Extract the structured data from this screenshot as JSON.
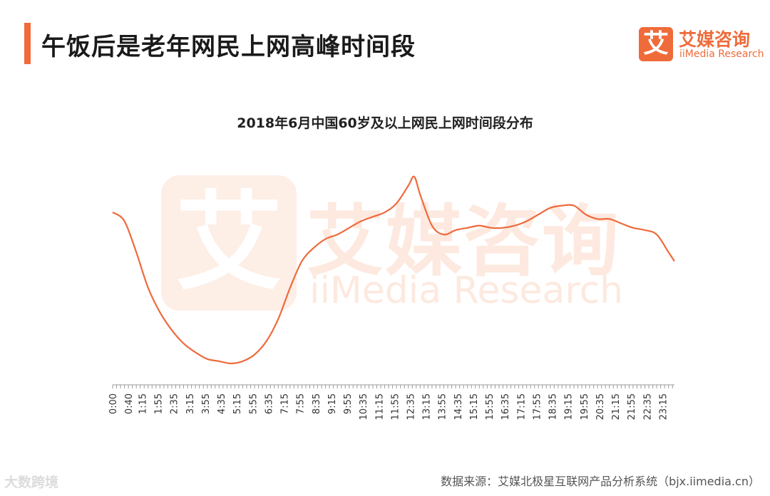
{
  "header": {
    "title": "午饭后是老年网民上网高峰时间段",
    "logo_mark": "艾",
    "logo_cn": "艾媒咨询",
    "logo_en": "iiMedia Research"
  },
  "watermark": {
    "mark": "艾",
    "cn": "艾媒咨询",
    "en": "iiMedia Research"
  },
  "footer": {
    "source": "数据来源：艾媒北极星互联网产品分析系统（bjx.iimedia.cn）",
    "brand": "大数跨境"
  },
  "colors": {
    "accent": "#ef6b3a",
    "line": "#ee6a3c",
    "axis": "#9a9a9a"
  },
  "chart_data": {
    "type": "line",
    "title": "2018年6月中国60岁及以上网民上网时间段分布",
    "xlabel": "",
    "ylabel": "",
    "grid": false,
    "legend": "none",
    "tick_labels": [
      "0:00",
      "0:40",
      "1:15",
      "1:55",
      "2:35",
      "3:15",
      "3:55",
      "4:35",
      "5:15",
      "5:55",
      "6:35",
      "7:15",
      "7:55",
      "8:35",
      "9:15",
      "9:55",
      "10:35",
      "11:15",
      "11:55",
      "12:35",
      "13:15",
      "13:55",
      "14:35",
      "15:15",
      "15:55",
      "16:35",
      "17:15",
      "17:55",
      "18:35",
      "19:15",
      "19:55",
      "20:35",
      "21:15",
      "21:55",
      "22:35",
      "23:15"
    ],
    "series": [
      {
        "x": [
          "0:00",
          "0:30",
          "1:00",
          "1:30",
          "2:00",
          "2:30",
          "3:00",
          "3:30",
          "4:00",
          "4:30",
          "5:00",
          "5:30",
          "6:00",
          "6:30",
          "7:00",
          "7:30",
          "8:00",
          "8:30",
          "9:00",
          "9:30",
          "10:00",
          "10:30",
          "11:00",
          "11:30",
          "12:00",
          "12:30",
          "12:45",
          "13:00",
          "13:30",
          "14:00",
          "14:30",
          "15:00",
          "15:30",
          "16:00",
          "16:30",
          "17:00",
          "17:30",
          "18:00",
          "18:30",
          "19:00",
          "19:30",
          "20:00",
          "20:30",
          "21:00",
          "21:30",
          "22:00",
          "22:30",
          "23:00",
          "23:30",
          "23:45"
        ],
        "values": [
          100,
          96,
          82,
          66,
          55,
          47,
          41,
          37,
          34,
          33,
          32,
          33,
          36,
          42,
          52,
          66,
          78,
          84,
          88,
          90,
          93,
          96,
          98,
          100,
          104,
          112,
          116,
          108,
          94,
          90,
          92,
          93,
          94,
          93,
          93,
          94,
          96,
          99,
          102,
          103,
          103,
          99,
          97,
          97,
          95,
          93,
          92,
          90,
          82,
          78
        ]
      }
    ]
  }
}
